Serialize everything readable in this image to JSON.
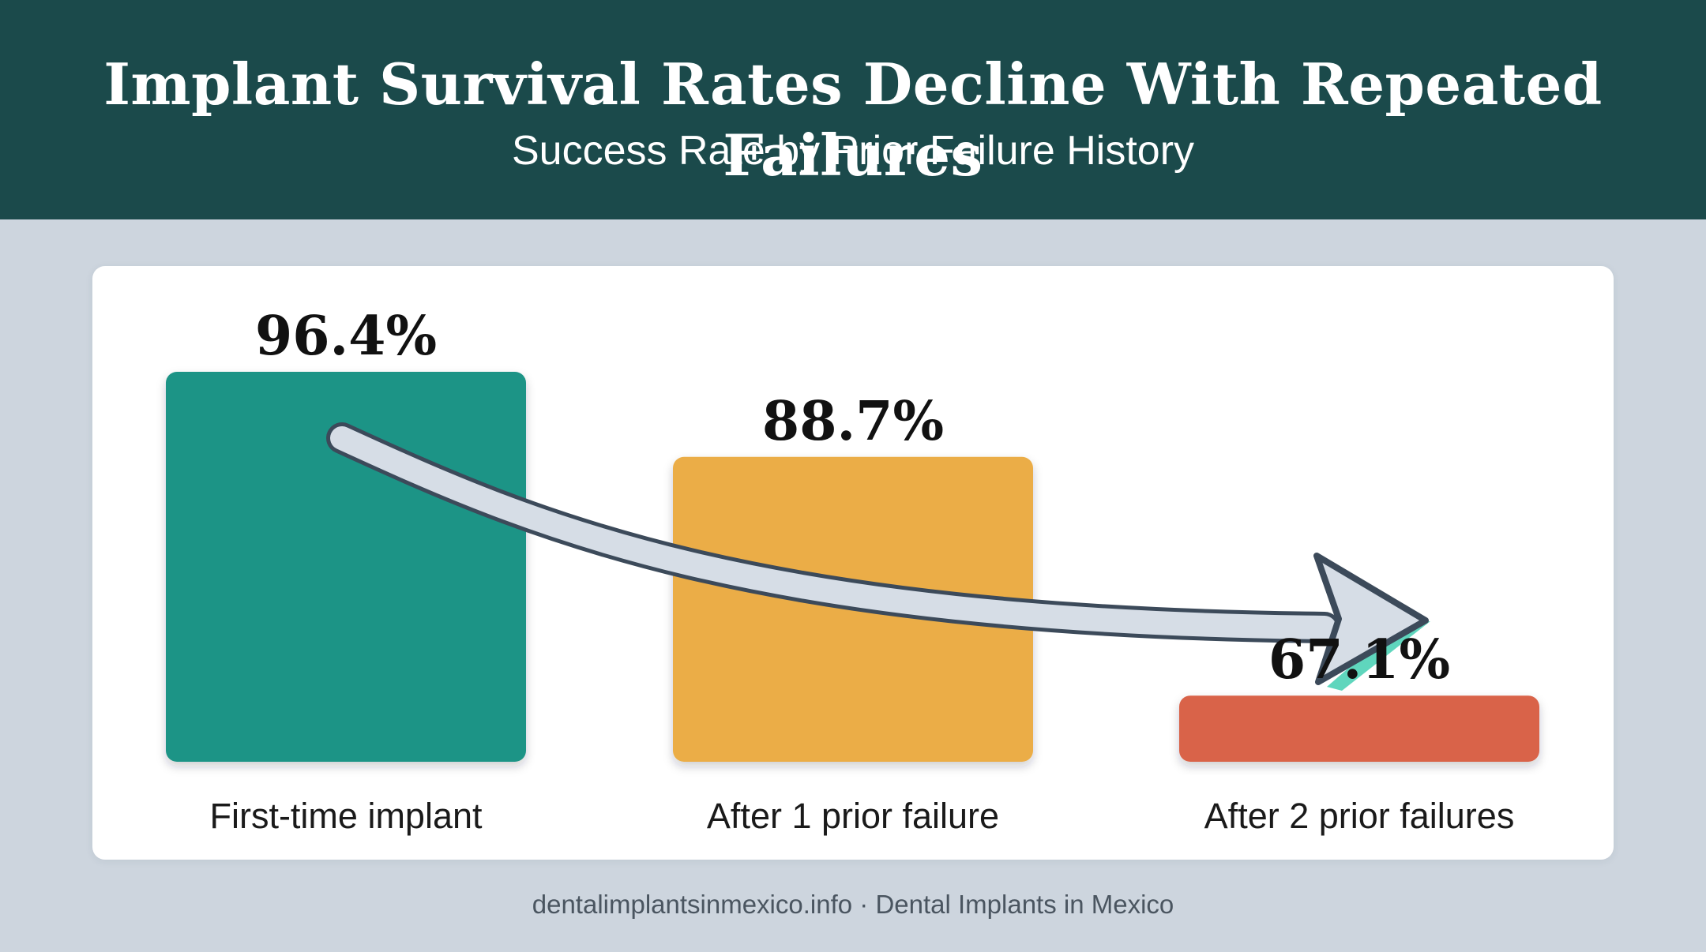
{
  "chart_data": {
    "type": "bar",
    "title": "Implant Survival Rates Decline With Repeated Failures",
    "subtitle": "Success Rate by Prior Failure History",
    "categories": [
      "First-time implant",
      "After 1 prior failure",
      "After 2 prior failures"
    ],
    "values": [
      96.4,
      88.7,
      67.1
    ],
    "value_labels": [
      "96.4%",
      "88.7%",
      "67.1%"
    ],
    "bar_colors": [
      "#1f9486",
      "#ebad46",
      "#d9634a"
    ],
    "units": "%",
    "annotation": "downward-trend-arrow",
    "axes_shown": false,
    "grid": false,
    "legend": "none"
  },
  "footer": "dentalimplantsinmexico.info · Dental Implants in Mexico",
  "colors": {
    "header_bg": "#1b4a4b",
    "page_bg": "#cdd5de",
    "arrow_fill": "#d6dde6",
    "arrow_stroke": "#3c4a5a",
    "arrow_accent": "#5fd6bd"
  }
}
